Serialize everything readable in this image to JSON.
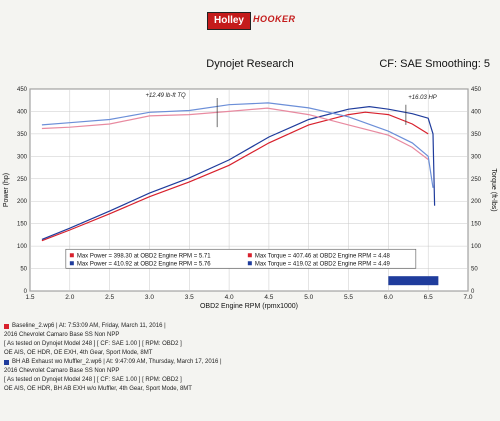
{
  "header": {
    "logo_left": "Holley",
    "logo_right": "HOOKER",
    "title": "Dynojet Research",
    "smoothing": "CF: SAE Smoothing: 5"
  },
  "colors": {
    "run1": "#d8212d",
    "run2": "#1f3c9c"
  },
  "annotations": {
    "torque_note": "+12.49 lb-ft TQ",
    "hp_note": "+16.03 HP"
  },
  "runs": [
    {
      "file": "Baseline_2.wp6 | At: 7:53:09 AM, Friday, March 11, 2016 |",
      "vehicle": "2016 Chevrolet Camaro Base SS Non NPP",
      "test": "[ As tested on Dynojet Model 248 ] [ CF: SAE 1.00 ] [ RPM: OBD2 ]",
      "notes": "OE AIS, OE HDR, OE EXH, 4th Gear, Sport Mode, 8MT"
    },
    {
      "file": "BH AB Exhaust wo Muffler_2.wp6 | At: 9:47:09 AM, Thursday, March 17, 2016 |",
      "vehicle": "2016 Chevrolet Camaro Base SS Non NPP",
      "test": "[ As tested on Dynojet Model 248 ] [ CF: SAE 1.00 ] [ RPM: OBD2 ]",
      "notes": "OE AIS, OE HDR, BH AB EXH w/o Muffler, 4th Gear, Sport Mode, 8MT"
    }
  ],
  "chart_data": {
    "type": "line",
    "xlabel": "OBD2 Engine RPM (rpmx1000)",
    "ylabel_left": "Power (hp)",
    "ylabel_right": "Torque (ft-lbs)",
    "xlim": [
      1.5,
      7.0
    ],
    "ylim": [
      0,
      450
    ],
    "x_ticks": [
      1.5,
      2.0,
      2.5,
      3.0,
      3.5,
      4.0,
      4.5,
      5.0,
      5.5,
      6.0,
      6.5,
      7.0
    ],
    "y_ticks": [
      0,
      50,
      100,
      150,
      200,
      250,
      300,
      350,
      400,
      450
    ],
    "grid": true,
    "legend": [
      "Max Power = 398.30 at OBD2 Engine RPM = 5.71",
      "Max Torque = 407.46 at OBD2 Engine RPM = 4.48",
      "Max Power = 410.92 at OBD2 Engine RPM = 5.76",
      "Max Torque = 419.02 at OBD2 Engine RPM = 4.49"
    ],
    "series": [
      {
        "key": "power_base",
        "color": "#d8212d",
        "x": [
          1.65,
          2.0,
          2.5,
          3.0,
          3.5,
          4.0,
          4.5,
          5.0,
          5.5,
          5.71,
          6.0,
          6.3,
          6.5
        ],
        "y": [
          112,
          136,
          172,
          210,
          243,
          280,
          330,
          370,
          393,
          398.3,
          393,
          372,
          350
        ]
      },
      {
        "key": "power_mod",
        "color": "#1f3c9c",
        "x": [
          1.65,
          2.0,
          2.5,
          3.0,
          3.5,
          4.0,
          4.5,
          5.0,
          5.5,
          5.76,
          6.0,
          6.3,
          6.5,
          6.56,
          6.58
        ],
        "y": [
          115,
          140,
          178,
          218,
          252,
          292,
          343,
          382,
          405,
          410.9,
          405,
          395,
          385,
          350,
          190
        ]
      },
      {
        "key": "torque_base",
        "color": "#e88aa0",
        "x": [
          1.65,
          2.0,
          2.5,
          3.0,
          3.5,
          4.0,
          4.48,
          5.0,
          5.5,
          6.0,
          6.3,
          6.5
        ],
        "y": [
          362,
          365,
          372,
          390,
          393,
          400,
          407.5,
          393,
          370,
          347,
          320,
          293
        ]
      },
      {
        "key": "torque_mod",
        "color": "#6c8fd8",
        "x": [
          1.65,
          2.0,
          2.5,
          3.0,
          3.5,
          4.0,
          4.49,
          5.0,
          5.5,
          6.0,
          6.3,
          6.5,
          6.56
        ],
        "y": [
          370,
          375,
          382,
          398,
          402,
          415,
          419.0,
          408,
          388,
          356,
          330,
          300,
          230
        ]
      }
    ]
  }
}
